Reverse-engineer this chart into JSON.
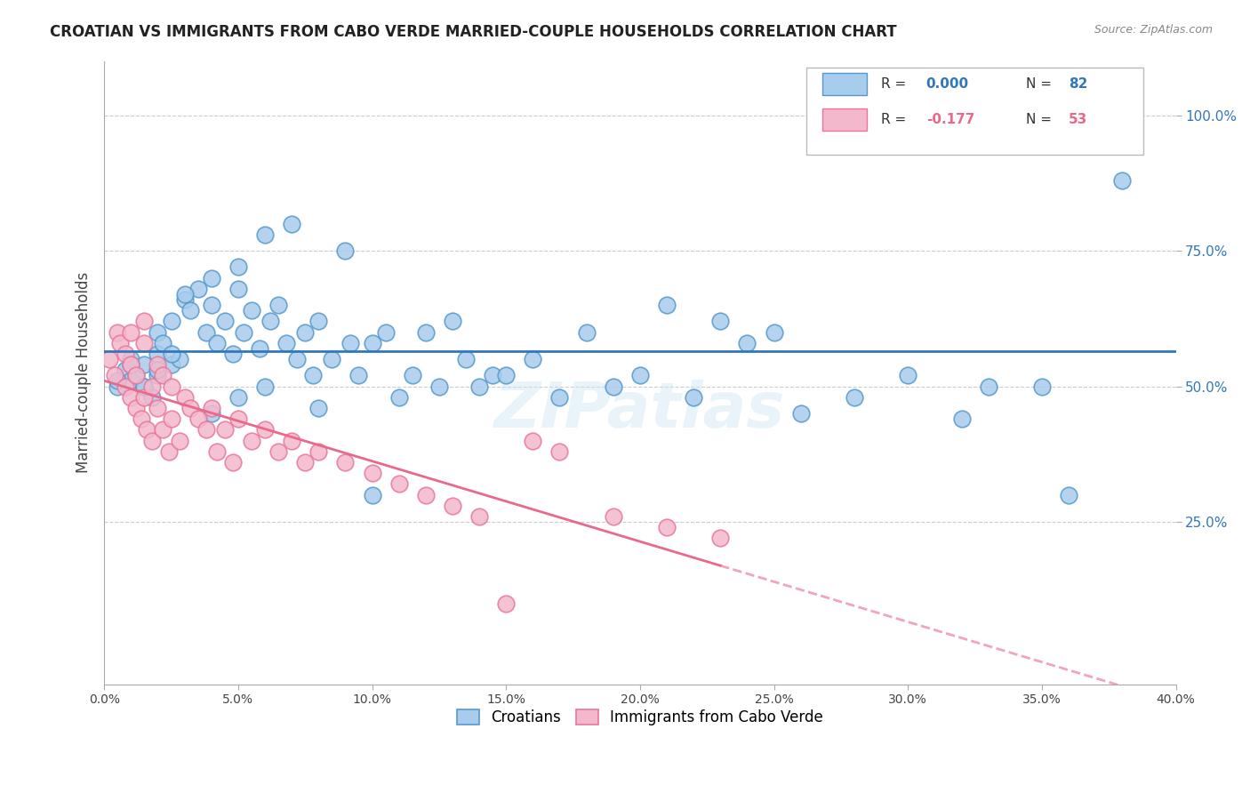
{
  "title": "CROATIAN VS IMMIGRANTS FROM CABO VERDE MARRIED-COUPLE HOUSEHOLDS CORRELATION CHART",
  "source": "Source: ZipAtlas.com",
  "ylabel": "Married-couple Households",
  "xlim": [
    0.0,
    0.4
  ],
  "ylim": [
    -0.05,
    1.1
  ],
  "legend_r1": "0.000",
  "legend_n1": "82",
  "legend_r2": "-0.177",
  "legend_n2": "53",
  "blue_fill": "#a8ccec",
  "pink_fill": "#f4b8cc",
  "blue_edge": "#5599cc",
  "pink_edge": "#e87799",
  "blue_line": "#3377bb",
  "pink_line": "#e8698a",
  "watermark": "ZIPatlas",
  "blue_scatter_x": [
    0.005,
    0.008,
    0.01,
    0.01,
    0.012,
    0.015,
    0.015,
    0.018,
    0.02,
    0.02,
    0.02,
    0.022,
    0.025,
    0.025,
    0.028,
    0.03,
    0.032,
    0.035,
    0.038,
    0.04,
    0.04,
    0.042,
    0.045,
    0.048,
    0.05,
    0.05,
    0.052,
    0.055,
    0.058,
    0.06,
    0.062,
    0.065,
    0.068,
    0.07,
    0.072,
    0.075,
    0.078,
    0.08,
    0.085,
    0.09,
    0.092,
    0.095,
    0.1,
    0.105,
    0.11,
    0.115,
    0.12,
    0.125,
    0.13,
    0.135,
    0.14,
    0.145,
    0.15,
    0.16,
    0.17,
    0.18,
    0.19,
    0.2,
    0.21,
    0.22,
    0.23,
    0.24,
    0.25,
    0.26,
    0.28,
    0.3,
    0.32,
    0.33,
    0.35,
    0.36,
    0.38,
    0.005,
    0.01,
    0.015,
    0.02,
    0.025,
    0.03,
    0.04,
    0.05,
    0.06,
    0.08,
    0.1
  ],
  "blue_scatter_y": [
    0.5,
    0.53,
    0.51,
    0.55,
    0.52,
    0.5,
    0.54,
    0.48,
    0.52,
    0.56,
    0.6,
    0.58,
    0.54,
    0.62,
    0.55,
    0.66,
    0.64,
    0.68,
    0.6,
    0.65,
    0.7,
    0.58,
    0.62,
    0.56,
    0.68,
    0.72,
    0.6,
    0.64,
    0.57,
    0.78,
    0.62,
    0.65,
    0.58,
    0.8,
    0.55,
    0.6,
    0.52,
    0.62,
    0.55,
    0.75,
    0.58,
    0.52,
    0.58,
    0.6,
    0.48,
    0.52,
    0.6,
    0.5,
    0.62,
    0.55,
    0.5,
    0.52,
    0.52,
    0.55,
    0.48,
    0.6,
    0.5,
    0.52,
    0.65,
    0.48,
    0.62,
    0.58,
    0.6,
    0.45,
    0.48,
    0.52,
    0.44,
    0.5,
    0.5,
    0.3,
    0.88,
    0.51,
    0.54,
    0.5,
    0.53,
    0.56,
    0.67,
    0.45,
    0.48,
    0.5,
    0.46,
    0.3
  ],
  "pink_scatter_x": [
    0.002,
    0.004,
    0.005,
    0.006,
    0.008,
    0.008,
    0.01,
    0.01,
    0.012,
    0.012,
    0.014,
    0.015,
    0.015,
    0.016,
    0.018,
    0.018,
    0.02,
    0.02,
    0.022,
    0.022,
    0.024,
    0.025,
    0.025,
    0.028,
    0.03,
    0.032,
    0.035,
    0.038,
    0.04,
    0.042,
    0.045,
    0.048,
    0.05,
    0.055,
    0.06,
    0.065,
    0.07,
    0.075,
    0.08,
    0.09,
    0.1,
    0.11,
    0.12,
    0.13,
    0.14,
    0.15,
    0.16,
    0.17,
    0.19,
    0.21,
    0.23,
    0.01,
    0.015
  ],
  "pink_scatter_y": [
    0.55,
    0.52,
    0.6,
    0.58,
    0.5,
    0.56,
    0.48,
    0.54,
    0.46,
    0.52,
    0.44,
    0.62,
    0.48,
    0.42,
    0.5,
    0.4,
    0.54,
    0.46,
    0.52,
    0.42,
    0.38,
    0.5,
    0.44,
    0.4,
    0.48,
    0.46,
    0.44,
    0.42,
    0.46,
    0.38,
    0.42,
    0.36,
    0.44,
    0.4,
    0.42,
    0.38,
    0.4,
    0.36,
    0.38,
    0.36,
    0.34,
    0.32,
    0.3,
    0.28,
    0.26,
    0.1,
    0.4,
    0.38,
    0.26,
    0.24,
    0.22,
    0.6,
    0.58
  ]
}
